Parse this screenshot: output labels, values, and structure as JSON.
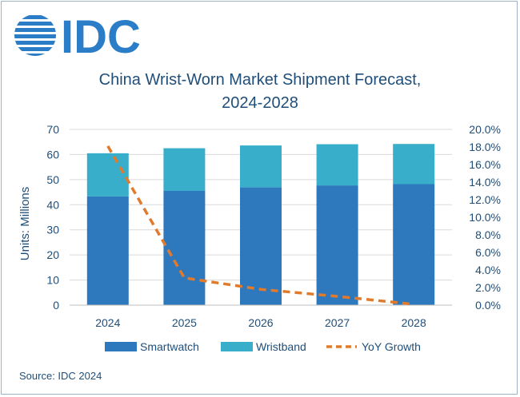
{
  "logo": {
    "text": "IDC"
  },
  "colors": {
    "smartwatch": "#2e78be",
    "wristband": "#38aecb",
    "yoy": "#e07b2e",
    "text": "#1f4e79",
    "grid": "#d9d9d9"
  },
  "source": "Source: IDC 2024",
  "chart_data": {
    "type": "bar",
    "title_lines": [
      "China Wrist-Worn Market Shipment Forecast,",
      "2024-2028"
    ],
    "ylabel": "Units: Millions",
    "categories": [
      "2024",
      "2025",
      "2026",
      "2027",
      "2028"
    ],
    "stacked": true,
    "ylim": [
      0,
      70
    ],
    "yticks": [
      0,
      10,
      20,
      30,
      40,
      50,
      60,
      70
    ],
    "y2lim": [
      0,
      20
    ],
    "y2ticks": [
      "0.0%",
      "2.0%",
      "4.0%",
      "6.0%",
      "8.0%",
      "10.0%",
      "12.0%",
      "14.0%",
      "16.0%",
      "18.0%",
      "20.0%"
    ],
    "series": [
      {
        "name": "Smartwatch",
        "type": "bar",
        "values": [
          43.3,
          45.5,
          46.9,
          47.7,
          48.2
        ]
      },
      {
        "name": "Wristband",
        "type": "bar",
        "values": [
          17.2,
          17.0,
          16.7,
          16.4,
          16.0
        ]
      },
      {
        "name": "YoY Growth",
        "type": "line",
        "axis": "right",
        "unit": "%",
        "values": [
          18.1,
          3.1,
          1.8,
          1.0,
          0.1
        ]
      }
    ],
    "legend": [
      "Smartwatch",
      "Wristband",
      "YoY Growth"
    ],
    "legend_position": "bottom",
    "grid": true
  }
}
